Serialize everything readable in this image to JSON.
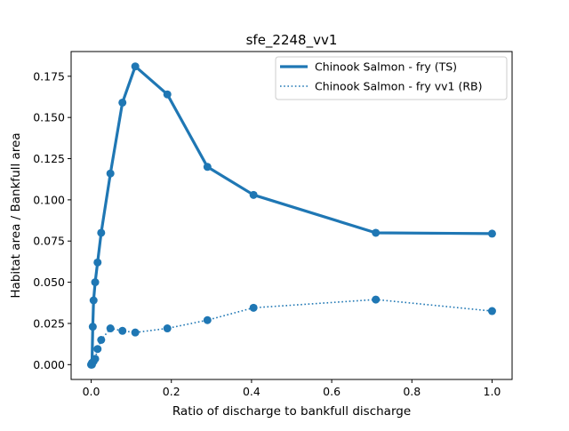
{
  "chart_data": {
    "type": "line",
    "title": "sfe_2248_vv1",
    "xlabel": "Ratio of discharge to bankfull discharge",
    "ylabel": "Habitat area / Bankfull area",
    "xlim": [
      -0.05,
      1.05
    ],
    "ylim": [
      -0.009,
      0.19
    ],
    "xticks": [
      0.0,
      0.2,
      0.4,
      0.6,
      0.8,
      1.0
    ],
    "xtick_labels": [
      "0.0",
      "0.2",
      "0.4",
      "0.6",
      "0.8",
      "1.0"
    ],
    "yticks": [
      0.0,
      0.025,
      0.05,
      0.075,
      0.1,
      0.125,
      0.15,
      0.175
    ],
    "ytick_labels": [
      "0.000",
      "0.025",
      "0.050",
      "0.075",
      "0.100",
      "0.125",
      "0.150",
      "0.175"
    ],
    "grid": false,
    "legend_position": "top-right",
    "series": [
      {
        "name": "Chinook Salmon - fry (TS)",
        "style": "solid",
        "color": "#1f77b4",
        "x": [
          0.0,
          0.002,
          0.004,
          0.006,
          0.01,
          0.016,
          0.025,
          0.048,
          0.078,
          0.11,
          0.19,
          0.29,
          0.405,
          0.71,
          1.0
        ],
        "y": [
          0.0,
          0.0,
          0.023,
          0.039,
          0.05,
          0.062,
          0.08,
          0.116,
          0.159,
          0.181,
          0.164,
          0.12,
          0.103,
          0.08,
          0.0795
        ]
      },
      {
        "name": "Chinook Salmon - fry vv1 (RB)",
        "style": "dotted",
        "color": "#1f77b4",
        "x": [
          0.0,
          0.002,
          0.006,
          0.01,
          0.016,
          0.025,
          0.048,
          0.078,
          0.11,
          0.19,
          0.29,
          0.405,
          0.71,
          1.0
        ],
        "y": [
          0.0,
          0.001,
          0.002,
          0.0035,
          0.0095,
          0.015,
          0.022,
          0.0205,
          0.0195,
          0.022,
          0.027,
          0.0345,
          0.0395,
          0.0325
        ]
      }
    ]
  }
}
